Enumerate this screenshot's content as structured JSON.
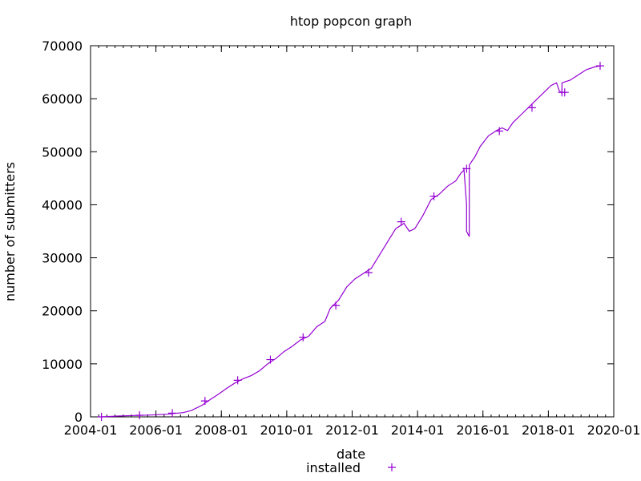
{
  "chart_data": {
    "type": "line",
    "title": "htop popcon graph",
    "xlabel": "date",
    "ylabel": "number of submitters",
    "xlim": [
      "2004-01",
      "2020-01"
    ],
    "ylim": [
      0,
      70000
    ],
    "x_ticks": [
      "2004-01",
      "2006-01",
      "2008-01",
      "2010-01",
      "2012-01",
      "2014-01",
      "2016-01",
      "2018-01",
      "2020-01"
    ],
    "y_ticks": [
      "0",
      "10000",
      "20000",
      "30000",
      "40000",
      "50000",
      "60000",
      "70000"
    ],
    "grid": false,
    "legend_position": "bottom-center",
    "colors": {
      "series": "#9400d3"
    },
    "series": [
      {
        "name": "installed",
        "points": [
          [
            "2004-05",
            0
          ],
          [
            "2004-11",
            150
          ],
          [
            "2005-05",
            250
          ],
          [
            "2005-11",
            350
          ],
          [
            "2006-05",
            500
          ],
          [
            "2006-11",
            800
          ],
          [
            "2007-02",
            1200
          ],
          [
            "2007-06",
            2200
          ],
          [
            "2007-09",
            3300
          ],
          [
            "2007-12",
            4300
          ],
          [
            "2008-03",
            5400
          ],
          [
            "2008-06",
            6400
          ],
          [
            "2008-09",
            7200
          ],
          [
            "2008-12",
            7800
          ],
          [
            "2009-03",
            8700
          ],
          [
            "2009-06",
            10000
          ],
          [
            "2009-09",
            11000
          ],
          [
            "2009-12",
            12300
          ],
          [
            "2010-03",
            13300
          ],
          [
            "2010-06",
            14500
          ],
          [
            "2010-09",
            15200
          ],
          [
            "2010-12",
            17000
          ],
          [
            "2011-03",
            18000
          ],
          [
            "2011-05",
            20500
          ],
          [
            "2011-08",
            22000
          ],
          [
            "2011-11",
            24500
          ],
          [
            "2012-02",
            26000
          ],
          [
            "2012-05",
            27000
          ],
          [
            "2012-08",
            28000
          ],
          [
            "2012-11",
            30500
          ],
          [
            "2013-02",
            33000
          ],
          [
            "2013-05",
            35500
          ],
          [
            "2013-08",
            36500
          ],
          [
            "2013-10",
            35000
          ],
          [
            "2013-12",
            35500
          ],
          [
            "2014-03",
            38000
          ],
          [
            "2014-06",
            41000
          ],
          [
            "2014-09",
            42000
          ],
          [
            "2014-12",
            43500
          ],
          [
            "2015-03",
            44500
          ],
          [
            "2015-05",
            46000
          ],
          [
            "2015-06",
            46500
          ],
          [
            "2015-06",
            47000
          ],
          [
            "2015-07",
            40000
          ],
          [
            "2015-07",
            35000
          ],
          [
            "2015-08",
            34000
          ],
          [
            "2015-08",
            43000
          ],
          [
            "2015-08",
            47500
          ],
          [
            "2015-10",
            49000
          ],
          [
            "2015-12",
            51000
          ],
          [
            "2016-03",
            53000
          ],
          [
            "2016-06",
            54000
          ],
          [
            "2016-08",
            54500
          ],
          [
            "2016-10",
            54000
          ],
          [
            "2016-12",
            55500
          ],
          [
            "2017-03",
            57000
          ],
          [
            "2017-06",
            58500
          ],
          [
            "2017-09",
            60000
          ],
          [
            "2017-12",
            61500
          ],
          [
            "2018-02",
            62500
          ],
          [
            "2018-04",
            63000
          ],
          [
            "2018-05",
            61500
          ],
          [
            "2018-06",
            61000
          ],
          [
            "2018-06",
            63000
          ],
          [
            "2018-09",
            63500
          ],
          [
            "2018-12",
            64500
          ],
          [
            "2019-03",
            65500
          ],
          [
            "2019-06",
            66000
          ],
          [
            "2019-08",
            66200
          ]
        ],
        "markers": [
          [
            "2004-05",
            0
          ],
          [
            "2005-07",
            300
          ],
          [
            "2006-07",
            700
          ],
          [
            "2007-07",
            3000
          ],
          [
            "2008-07",
            6900
          ],
          [
            "2009-07",
            10800
          ],
          [
            "2010-07",
            15000
          ],
          [
            "2011-07",
            21000
          ],
          [
            "2012-07",
            27200
          ],
          [
            "2013-07",
            36800
          ],
          [
            "2014-07",
            41600
          ],
          [
            "2015-07",
            46800
          ],
          [
            "2016-07",
            53900
          ],
          [
            "2017-07",
            58300
          ],
          [
            "2018-06",
            61200
          ],
          [
            "2018-07",
            61200
          ],
          [
            "2019-08",
            66200
          ]
        ]
      }
    ]
  }
}
